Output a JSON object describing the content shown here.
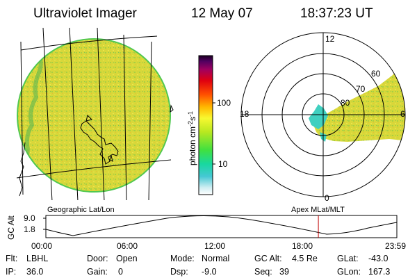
{
  "header": {
    "instrument": "Ultraviolet Imager",
    "date": "12 May 07",
    "time": "18:37:23 UT"
  },
  "colorbar": {
    "label": "photon cm-2s-1",
    "label_main": "photon cm",
    "label_sup1": "-2",
    "label_mid": "s",
    "label_sup2": "-1",
    "ticks": [
      "100",
      "10"
    ],
    "scale": "log"
  },
  "left_panel": {
    "caption": "Geographic Lat/Lon",
    "fill_color": "#d8d83a"
  },
  "polar_panel": {
    "caption": "Apex MLat/MLT",
    "mlt_labels": [
      "12",
      "18",
      "6",
      "0"
    ],
    "mlat_labels": [
      "60",
      "70",
      "80"
    ]
  },
  "timeline": {
    "ylabel": "GC Alt",
    "yticks": [
      "9.0",
      "1.8"
    ],
    "xticks": [
      "00:00",
      "06:00",
      "12:00",
      "18:00",
      "23:59"
    ],
    "marker_color": "#c00000",
    "marker_time_hours": 18.62
  },
  "info": {
    "row1": [
      {
        "key": "Flt:",
        "val": "LBHL"
      },
      {
        "key": "Door:",
        "val": "Open"
      },
      {
        "key": "Mode:",
        "val": "Normal"
      },
      {
        "key": "GC Alt:",
        "val": "4.5 Re"
      },
      {
        "key": "GLat:",
        "val": "-43.0"
      }
    ],
    "row2": [
      {
        "key": "IP:",
        "val": "36.0"
      },
      {
        "key": "Gain:",
        "val": "0"
      },
      {
        "key": "Dsp:",
        "val": "-9.0"
      },
      {
        "key": "Seq:",
        "val": "39"
      },
      {
        "key": "GLon:",
        "val": "167.3"
      }
    ]
  }
}
